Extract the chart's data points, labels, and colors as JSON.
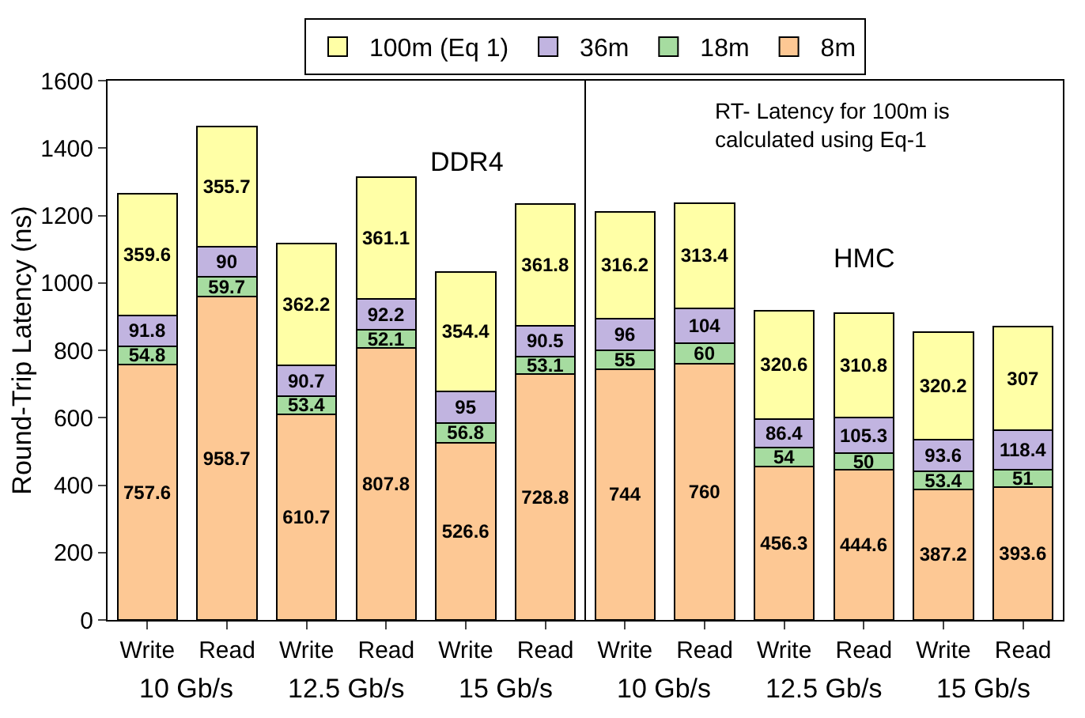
{
  "chart_data": {
    "type": "bar",
    "stacked": true,
    "ylabel": "Round-Trip Latency (ns)",
    "categories": [
      "Write",
      "Read",
      "Write",
      "Read",
      "Write",
      "Read",
      "Write",
      "Read",
      "Write",
      "Read",
      "Write",
      "Read"
    ],
    "series": [
      {
        "name": "8m",
        "color": "#fdc894",
        "values": [
          757.6,
          958.7,
          610.7,
          807.8,
          526.6,
          728.8,
          744,
          760,
          456.3,
          444.6,
          387.2,
          393.6
        ]
      },
      {
        "name": "18m",
        "color": "#a6dca0",
        "values": [
          54.8,
          59.7,
          53.4,
          52.1,
          56.8,
          53.1,
          55,
          60,
          54,
          50,
          53.4,
          51
        ]
      },
      {
        "name": "36m",
        "color": "#c1b4e0",
        "values": [
          91.8,
          90,
          90.7,
          92.2,
          95,
          90.5,
          96,
          104,
          86.4,
          105.3,
          93.6,
          118.4
        ]
      },
      {
        "name": "100m (Eq 1)",
        "color": "#ffffa6",
        "values": [
          359.6,
          355.7,
          362.2,
          361.1,
          354.4,
          361.8,
          316.2,
          313.4,
          320.6,
          310.8,
          320.2,
          307
        ]
      }
    ],
    "data_labels": true,
    "ylim": [
      0,
      1600
    ],
    "yticks": [
      0,
      200,
      400,
      600,
      800,
      1000,
      1200,
      1400,
      1600
    ],
    "grid": false,
    "legend": "top",
    "annotations": [
      "DDR4",
      "HMC",
      "RT- Latency for 100m is\ncalculated using Eq-1",
      "10 Gb/s",
      "12.5 Gb/s",
      "15 Gb/s",
      "10 Gb/s",
      "12.5 Gb/s",
      "15 Gb/s"
    ]
  }
}
